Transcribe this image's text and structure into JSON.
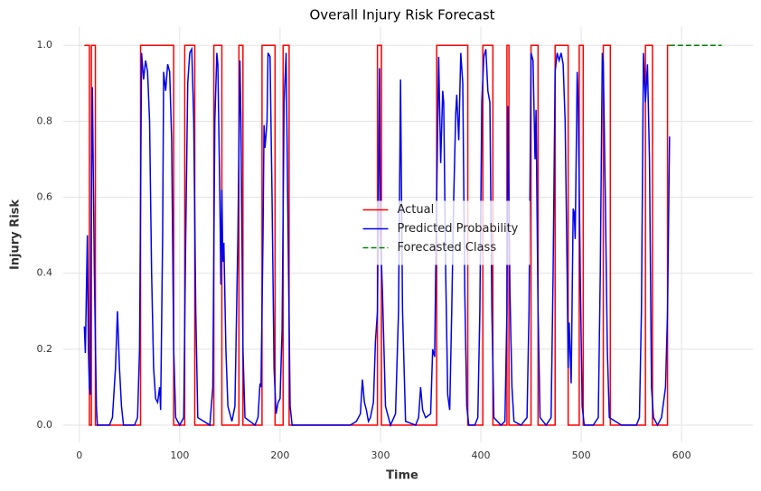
{
  "chart_data": {
    "type": "line",
    "title": "Overall Injury Risk Forecast",
    "x_label": "Time",
    "y_label": "Injury Risk",
    "xlim": [
      -16,
      671
    ],
    "ylim": [
      -0.045,
      1.048
    ],
    "xticks": [
      0,
      100,
      200,
      300,
      400,
      500,
      600
    ],
    "yticks": [
      {
        "value": 0,
        "label": "0.0"
      },
      0.2,
      0.4,
      0.6,
      0.8,
      {
        "value": 1,
        "label": "1.0"
      }
    ],
    "grid": true,
    "legend": "center",
    "series": [
      {
        "name": "Actual",
        "color": "#ff0000",
        "style": "solid",
        "x": [
          5,
          10,
          10,
          12,
          12,
          16,
          16,
          61,
          61,
          94,
          94,
          105,
          105,
          115,
          115,
          134,
          134,
          142,
          142,
          159,
          159,
          163,
          163,
          182,
          182,
          195,
          195,
          203,
          203,
          209,
          209,
          297,
          297,
          301,
          301,
          356,
          356,
          387,
          387,
          402,
          402,
          412,
          412,
          426,
          426,
          428,
          428,
          450,
          450,
          457,
          457,
          474,
          474,
          487,
          487,
          498,
          498,
          502,
          502,
          522,
          522,
          529,
          529,
          564,
          564,
          571,
          571,
          586,
          586,
          588
        ],
        "values": [
          1,
          1,
          0,
          0,
          1,
          1,
          0,
          0,
          1,
          1,
          0,
          0,
          1,
          1,
          0,
          0,
          1,
          1,
          0,
          0,
          1,
          1,
          0,
          0,
          1,
          1,
          0,
          0,
          1,
          1,
          0,
          0,
          1,
          1,
          0,
          0,
          1,
          1,
          0,
          0,
          1,
          1,
          0,
          0,
          1,
          1,
          0,
          0,
          1,
          1,
          0,
          0,
          1,
          1,
          0,
          0,
          1,
          1,
          0,
          0,
          1,
          1,
          0,
          0,
          1,
          1,
          0,
          0,
          1,
          1
        ]
      },
      {
        "name": "Predicted Probability",
        "color": "#0000ee",
        "style": "solid",
        "x": [
          5,
          6,
          8,
          9,
          10,
          11,
          12,
          13,
          15,
          17,
          18,
          30,
          33,
          36,
          38,
          40,
          42,
          44,
          55,
          58,
          60,
          62,
          64,
          66,
          68,
          70,
          72,
          74,
          76,
          78,
          80,
          81,
          83,
          84,
          86,
          88,
          90,
          92,
          94,
          96,
          100,
          104,
          106,
          108,
          110,
          112,
          114,
          116,
          118,
          130,
          133,
          135,
          137,
          138,
          140,
          141,
          142,
          143,
          144,
          146,
          148,
          152,
          155,
          158,
          160,
          161,
          163,
          165,
          175,
          178,
          180,
          181,
          183,
          184,
          185,
          187,
          188,
          190,
          192,
          194,
          196,
          198,
          200,
          202,
          204,
          206,
          208,
          210,
          212,
          270,
          276,
          280,
          282,
          284,
          286,
          288,
          290,
          293,
          295,
          297,
          299,
          300,
          302,
          305,
          310,
          315,
          318,
          320,
          322,
          325,
          335,
          338,
          340,
          342,
          345,
          350,
          352,
          354,
          356,
          358,
          360,
          362,
          363,
          365,
          367,
          369,
          371,
          373,
          375,
          376,
          378,
          380,
          382,
          384,
          386,
          388,
          394,
          397,
          399,
          401,
          403,
          405,
          407,
          409,
          411,
          413,
          420,
          424,
          426,
          427,
          429,
          431,
          433,
          440,
          446,
          448,
          450,
          452,
          454,
          455,
          457,
          459,
          465,
          470,
          472,
          474,
          476,
          478,
          480,
          482,
          484,
          486,
          487,
          488,
          490,
          492,
          493,
          494,
          496,
          497,
          499,
          501,
          503,
          512,
          517,
          519,
          521,
          522,
          524,
          526,
          528,
          540,
          555,
          558,
          560,
          562,
          564,
          566,
          568,
          570,
          572,
          576,
          580,
          584,
          586,
          588
        ],
        "values": [
          0.26,
          0.19,
          0.5,
          0.2,
          0.1,
          0.08,
          0.6,
          0.89,
          0.4,
          0.05,
          0,
          0,
          0.02,
          0.15,
          0.3,
          0.15,
          0.05,
          0,
          0,
          0.02,
          0.2,
          0.98,
          0.91,
          0.96,
          0.93,
          0.8,
          0.4,
          0.15,
          0.07,
          0.06,
          0.1,
          0.04,
          0.5,
          0.93,
          0.88,
          0.95,
          0.93,
          0.75,
          0.2,
          0.02,
          0,
          0.02,
          0.5,
          0.9,
          0.98,
          0.99,
          0.8,
          0.3,
          0.02,
          0,
          0.1,
          0.8,
          0.98,
          0.95,
          0.6,
          0.37,
          0.62,
          0.43,
          0.48,
          0.2,
          0.05,
          0.01,
          0.05,
          0.5,
          0.96,
          0.8,
          0.2,
          0.02,
          0,
          0.02,
          0.11,
          0.1,
          0.5,
          0.79,
          0.73,
          0.8,
          0.98,
          0.97,
          0.6,
          0.15,
          0.03,
          0.06,
          0.07,
          0.25,
          0.85,
          0.98,
          0.5,
          0.05,
          0,
          0,
          0.01,
          0.03,
          0.12,
          0.06,
          0.04,
          0.01,
          0.02,
          0.06,
          0.22,
          0.3,
          0.94,
          0.5,
          0.35,
          0.05,
          0,
          0.03,
          0.3,
          0.91,
          0.3,
          0.01,
          0,
          0.02,
          0.1,
          0.04,
          0.02,
          0.03,
          0.2,
          0.18,
          0.6,
          0.97,
          0.69,
          0.88,
          0.85,
          0.4,
          0.08,
          0.04,
          0.3,
          0.6,
          0.82,
          0.87,
          0.75,
          0.98,
          0.9,
          0.35,
          0.05,
          0,
          0,
          0.02,
          0.3,
          0.85,
          0.97,
          0.99,
          0.88,
          0.85,
          0.3,
          0.02,
          0,
          0.01,
          0.3,
          0.84,
          0.35,
          0.1,
          0.01,
          0,
          0.02,
          0.3,
          0.98,
          0.96,
          0.7,
          0.83,
          0.3,
          0.02,
          0,
          0.02,
          0.4,
          0.93,
          0.98,
          0.96,
          0.98,
          0.95,
          0.8,
          0.4,
          0.15,
          0.27,
          0.11,
          0.57,
          0.56,
          0.49,
          0.93,
          0.85,
          0.4,
          0.05,
          0,
          0,
          0.02,
          0.4,
          0.98,
          0.95,
          0.6,
          0.2,
          0.02,
          0,
          0,
          0.02,
          0.3,
          0.98,
          0.85,
          0.95,
          0.7,
          0.1,
          0.02,
          0,
          0.02,
          0.1,
          0.3,
          0.76
        ]
      },
      {
        "name": "Forecasted Class",
        "color": "#008000",
        "style": "dashed",
        "x": [
          588,
          640
        ],
        "values": [
          1,
          1
        ]
      }
    ]
  }
}
